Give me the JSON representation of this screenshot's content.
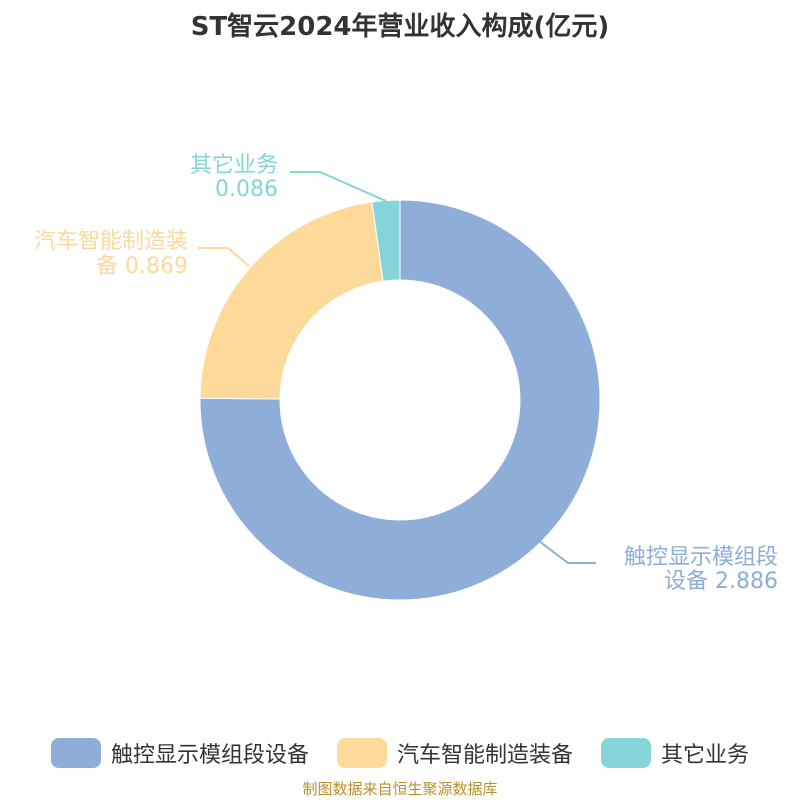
{
  "title": "ST智云2024年营业收入构成(亿元)",
  "source": "制图数据来自恒生聚源数据库",
  "chart_data": {
    "type": "pie",
    "variant": "donut",
    "title": "ST智云2024年营业收入构成(亿元)",
    "series": [
      {
        "name": "触控显示模组段设备",
        "value": 2.886,
        "color": "#8eadd9",
        "label_line1": "触控显示模组段",
        "label_line2": "设备 2.886"
      },
      {
        "name": "汽车智能制造装备",
        "value": 0.869,
        "color": "#fdd99a",
        "label_line1": "汽车智能制造装",
        "label_line2": "备 0.869"
      },
      {
        "name": "其它业务",
        "value": 0.086,
        "color": "#85d4d7",
        "label_line1": "其它业务",
        "label_line2": "0.086"
      }
    ],
    "legend_position": "bottom"
  }
}
